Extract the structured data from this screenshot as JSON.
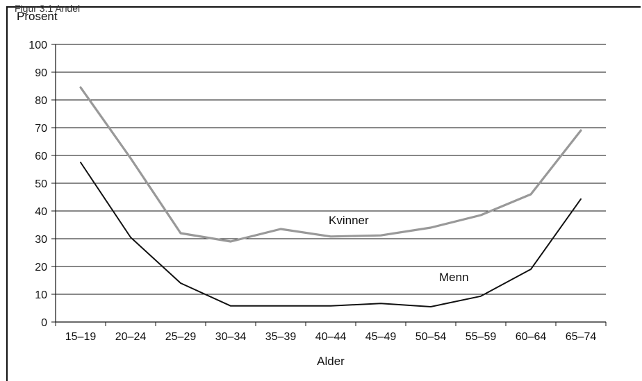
{
  "figure_caption": "Figur 3.1 Andel",
  "chart_data": {
    "type": "line",
    "ylabel": "Prosent",
    "xlabel": "Alder",
    "ylim": [
      0,
      100
    ],
    "yticks": [
      0,
      10,
      20,
      30,
      40,
      50,
      60,
      70,
      80,
      90,
      100
    ],
    "categories": [
      "15–19",
      "20–24",
      "25–29",
      "30–34",
      "35–39",
      "40–44",
      "45–49",
      "50–54",
      "55–59",
      "60–64",
      "65–74"
    ],
    "grid": "horizontal",
    "series": [
      {
        "name": "Kvinner",
        "color": "#999999",
        "values": [
          84.5,
          59,
          32,
          29,
          33.5,
          30.8,
          31.2,
          34,
          38.5,
          46,
          69
        ]
      },
      {
        "name": "Menn",
        "color": "#111111",
        "values": [
          57.5,
          30.5,
          14,
          5.8,
          5.8,
          5.8,
          6.7,
          5.5,
          9.3,
          19,
          44.3
        ]
      }
    ]
  }
}
